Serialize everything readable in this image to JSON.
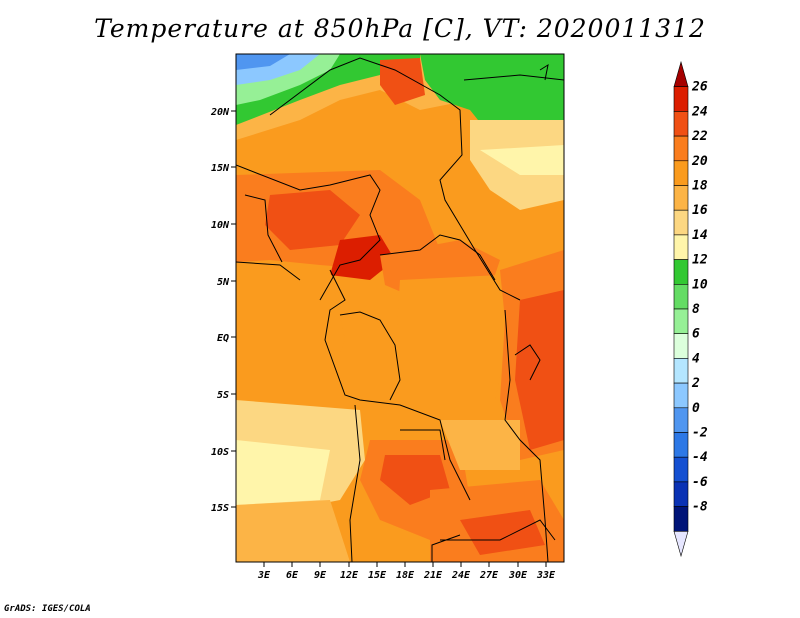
{
  "title": "Temperature at 850hPa [C], VT: 2020011312",
  "credit": "GrADS: IGES/COLA",
  "map": {
    "lat_labels": [
      "20N",
      "15N",
      "10N",
      "5N",
      "EQ",
      "5S",
      "10S",
      "15S"
    ],
    "lon_labels": [
      "3E",
      "6E",
      "9E",
      "12E",
      "15E",
      "18E",
      "21E",
      "24E",
      "27E",
      "30E",
      "33E"
    ]
  },
  "colorbar": {
    "labels": [
      "26",
      "24",
      "22",
      "20",
      "18",
      "16",
      "14",
      "12",
      "10",
      "8",
      "6",
      "4",
      "2",
      "0",
      "-2",
      "-4",
      "-6",
      "-8"
    ],
    "colors": [
      "#a50000",
      "#dc1e00",
      "#f05014",
      "#fa7d1e",
      "#fa9b1e",
      "#fcb446",
      "#fcd782",
      "#fff5aa",
      "#32c832",
      "#64dc64",
      "#96f096",
      "#dcffdc",
      "#b4e6ff",
      "#8cc8ff",
      "#5096f0",
      "#2d78e6",
      "#1450d2",
      "#0a32b4",
      "#001478",
      "#e6e6ff"
    ]
  }
}
